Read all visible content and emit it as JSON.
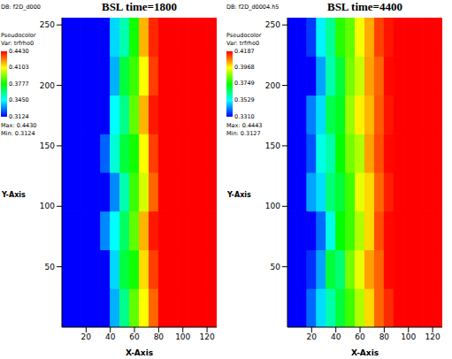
{
  "chart_data": [
    {
      "type": "heatmap",
      "title": "BSL time=1800",
      "db": "DB: f2D_d000",
      "legend_title": "Pseudocolor",
      "legend_var": "Var: trfrho0",
      "x_label": "X-Axis",
      "y_label": "Y-Axis",
      "xlim": [
        0,
        128
      ],
      "xticks": [
        20,
        40,
        60,
        80,
        100,
        120
      ],
      "ylim": [
        0,
        256
      ],
      "yticks": [
        50,
        100,
        150,
        200,
        250
      ],
      "x_edges": [
        0,
        8,
        16,
        24,
        32,
        40,
        48,
        56,
        64,
        72,
        80,
        88,
        96,
        104,
        112,
        120,
        128
      ],
      "y_edges": [
        0,
        32,
        64,
        96,
        128,
        160,
        192,
        224,
        256
      ],
      "cells": [
        [
          0.3124,
          0.3124,
          0.3124,
          0.3124,
          0.3124,
          0.335,
          0.36,
          0.39,
          0.41,
          0.43,
          0.443,
          0.443,
          0.443,
          0.443,
          0.443,
          0.443
        ],
        [
          0.3124,
          0.3124,
          0.3124,
          0.3124,
          0.3124,
          0.34,
          0.37,
          0.38,
          0.415,
          0.435,
          0.443,
          0.443,
          0.443,
          0.443,
          0.443,
          0.443
        ],
        [
          0.3124,
          0.3124,
          0.3124,
          0.3124,
          0.33,
          0.345,
          0.365,
          0.39,
          0.42,
          0.44,
          0.443,
          0.443,
          0.443,
          0.443,
          0.443,
          0.443
        ],
        [
          0.3124,
          0.3124,
          0.3124,
          0.3124,
          0.3124,
          0.33,
          0.355,
          0.385,
          0.405,
          0.43,
          0.443,
          0.443,
          0.443,
          0.443,
          0.443,
          0.443
        ],
        [
          0.3124,
          0.3124,
          0.3124,
          0.3124,
          0.325,
          0.35,
          0.37,
          0.38,
          0.41,
          0.435,
          0.443,
          0.443,
          0.443,
          0.443,
          0.443,
          0.443
        ],
        [
          0.3124,
          0.3124,
          0.3124,
          0.3124,
          0.3124,
          0.345,
          0.36,
          0.39,
          0.42,
          0.44,
          0.443,
          0.443,
          0.443,
          0.443,
          0.443,
          0.443
        ],
        [
          0.3124,
          0.3124,
          0.3124,
          0.3124,
          0.3124,
          0.335,
          0.37,
          0.385,
          0.41,
          0.435,
          0.443,
          0.443,
          0.443,
          0.443,
          0.443,
          0.443
        ],
        [
          0.3124,
          0.3124,
          0.3124,
          0.3124,
          0.3124,
          0.34,
          0.355,
          0.38,
          0.42,
          0.438,
          0.443,
          0.443,
          0.443,
          0.443,
          0.443,
          0.443
        ]
      ],
      "colorbar_range": [
        0.3124,
        0.443
      ],
      "colorbar_ticks": [
        {
          "value": 0.443,
          "label": "0.4430"
        },
        {
          "value": 0.4103,
          "label": "0.4103"
        },
        {
          "value": 0.3777,
          "label": "0.3777"
        },
        {
          "value": 0.345,
          "label": "0.3450"
        },
        {
          "value": 0.3124,
          "label": "0.3124"
        }
      ],
      "max_label": "Max: 0.4430",
      "min_label": "Min: 0.3124"
    },
    {
      "type": "heatmap",
      "title": "BSL time=4400",
      "db": "DB: f2D_d0004.h5",
      "legend_title": "Pseudocolor",
      "legend_var": "Var: trfrho0",
      "x_label": "X-Axis",
      "y_label": "Y-Axis",
      "xlim": [
        0,
        128
      ],
      "xticks": [
        20,
        40,
        60,
        80,
        100,
        120
      ],
      "ylim": [
        0,
        256
      ],
      "yticks": [
        50,
        100,
        150,
        200,
        250
      ],
      "x_edges": [
        0,
        8,
        16,
        24,
        32,
        40,
        48,
        56,
        64,
        72,
        80,
        88,
        96,
        104,
        112,
        120,
        128
      ],
      "y_edges": [
        0,
        32,
        64,
        96,
        128,
        160,
        192,
        224,
        256
      ],
      "cells": [
        [
          0.331,
          0.331,
          0.34,
          0.35,
          0.36,
          0.37,
          0.38,
          0.39,
          0.4,
          0.41,
          0.415,
          0.4187,
          0.4187,
          0.4187,
          0.4187,
          0.4187
        ],
        [
          0.331,
          0.331,
          0.335,
          0.345,
          0.37,
          0.365,
          0.385,
          0.395,
          0.405,
          0.41,
          0.418,
          0.4187,
          0.4187,
          0.4187,
          0.4187,
          0.4187
        ],
        [
          0.331,
          0.331,
          0.331,
          0.34,
          0.355,
          0.375,
          0.38,
          0.39,
          0.4,
          0.412,
          0.418,
          0.4187,
          0.4187,
          0.4187,
          0.4187,
          0.4187
        ],
        [
          0.331,
          0.331,
          0.345,
          0.35,
          0.365,
          0.37,
          0.38,
          0.395,
          0.4,
          0.41,
          0.416,
          0.4187,
          0.4187,
          0.4187,
          0.4187,
          0.4187
        ],
        [
          0.331,
          0.331,
          0.338,
          0.355,
          0.36,
          0.375,
          0.385,
          0.39,
          0.405,
          0.412,
          0.418,
          0.4187,
          0.4187,
          0.4187,
          0.4187,
          0.4187
        ],
        [
          0.331,
          0.331,
          0.342,
          0.35,
          0.368,
          0.372,
          0.388,
          0.398,
          0.403,
          0.411,
          0.417,
          0.4187,
          0.4187,
          0.4187,
          0.4187,
          0.4187
        ],
        [
          0.331,
          0.331,
          0.331,
          0.345,
          0.36,
          0.37,
          0.385,
          0.392,
          0.405,
          0.41,
          0.418,
          0.4187,
          0.4187,
          0.4187,
          0.4187,
          0.4187
        ],
        [
          0.331,
          0.331,
          0.336,
          0.352,
          0.362,
          0.378,
          0.383,
          0.396,
          0.404,
          0.413,
          0.417,
          0.4187,
          0.4187,
          0.4187,
          0.4187,
          0.4187
        ]
      ],
      "colorbar_range": [
        0.331,
        0.4187
      ],
      "colorbar_ticks": [
        {
          "value": 0.4187,
          "label": "0.4187"
        },
        {
          "value": 0.3968,
          "label": "0.3968"
        },
        {
          "value": 0.3749,
          "label": "0.3749"
        },
        {
          "value": 0.3529,
          "label": "0.3529"
        },
        {
          "value": 0.331,
          "label": "0.3310"
        }
      ],
      "max_label": "Max: 0.4443",
      "min_label": "Min: 0.3127"
    }
  ]
}
